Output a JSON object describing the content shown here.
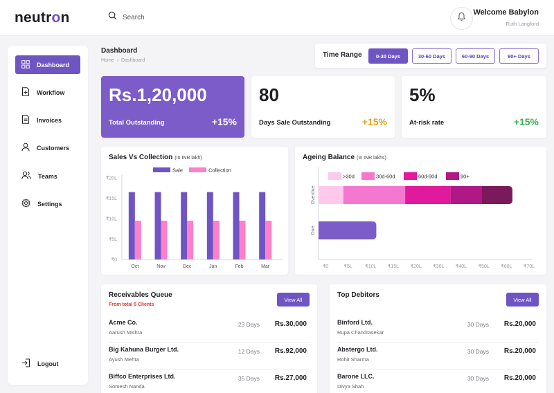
{
  "brand": {
    "prefix": "neutr",
    "o": "o",
    "suffix": "n"
  },
  "search": {
    "placeholder": "Search"
  },
  "user": {
    "welcome": "Welcome Babylon",
    "name": "Ruth Langford"
  },
  "sidebar": {
    "items": [
      {
        "label": "Dashboard",
        "icon": "grid-icon"
      },
      {
        "label": "Workflow",
        "icon": "workflow-icon"
      },
      {
        "label": "Invoices",
        "icon": "invoice-icon"
      },
      {
        "label": "Customers",
        "icon": "user-icon"
      },
      {
        "label": "Teams",
        "icon": "team-icon"
      },
      {
        "label": "Settings",
        "icon": "gear-icon"
      }
    ],
    "logout": "Logout"
  },
  "page": {
    "title": "Dashboard",
    "crumb_home": "Home",
    "crumb_sep": "›",
    "crumb_current": "Dashboard"
  },
  "time_range": {
    "label": "Time Range",
    "options": [
      "0-30 Days",
      "30-60 Days",
      "60-90 Days",
      "90+ Days"
    ],
    "selected": "0-30 Days"
  },
  "kpis": [
    {
      "value": "Rs.1,20,000",
      "label": "Total Outstanding",
      "change": "+15%",
      "change_color": "#ffffff"
    },
    {
      "value": "80",
      "label": "Days Sale Outstanding",
      "change": "+15%",
      "change_color": "#e2a126"
    },
    {
      "value": "5%",
      "label": "At-risk rate",
      "change": "+15%",
      "change_color": "#3dae55"
    }
  ],
  "sales_chart": {
    "title": "Sales Vs Collection",
    "subtitle": "(In INR lakh)"
  },
  "ageing_chart": {
    "title": "Ageing Balance",
    "subtitle": "(In INR lakhs)"
  },
  "chart_data": [
    {
      "type": "bar",
      "title": "Sales Vs Collection",
      "categories": [
        "Oct",
        "Nov",
        "Dec",
        "Jan",
        "Feb",
        "Mar"
      ],
      "series": [
        {
          "name": "Sale",
          "values": [
            16.5,
            16.5,
            16.5,
            16.5,
            16.5,
            16.5
          ],
          "color": "#6f55c4"
        },
        {
          "name": "Collection",
          "values": [
            9.5,
            9.5,
            9.5,
            9.5,
            9.5,
            9.5
          ],
          "color": "#ff80c8"
        }
      ],
      "yticks": [
        "₹0",
        "₹5L",
        "₹10L",
        "₹15L",
        "₹20L"
      ],
      "ylim": [
        0,
        20
      ],
      "legend": "top",
      "grid": false
    },
    {
      "type": "bar",
      "orientation": "horizontal",
      "stacked": true,
      "title": "Ageing Balance",
      "categories": [
        "Overdue",
        "Due"
      ],
      "series": [
        {
          "name": ">30d",
          "values": [
            6,
            0
          ],
          "color": "#ffc9ec"
        },
        {
          "name": "30d-60d",
          "values": [
            15,
            0
          ],
          "color": "#f478cf"
        },
        {
          "name": "60d-90d",
          "values": [
            11,
            0
          ],
          "color": "#e0199d"
        },
        {
          "name": "90+",
          "values": [
            7.5,
            0
          ],
          "color": "#b01886"
        },
        {
          "name": "",
          "values": [
            7.5,
            0
          ],
          "color": "#7a1a5c"
        },
        {
          "name": "",
          "values": [
            0,
            14
          ],
          "color": "#7b5cc8"
        }
      ],
      "xticks": [
        "₹0",
        "₹5L",
        "₹10L",
        "₹15L",
        "₹20L",
        "₹30L",
        "₹40L",
        "₹50L",
        "₹60L",
        "₹70L"
      ],
      "legend": "top",
      "grid": false
    }
  ],
  "receivables": {
    "title": "Receivables Queue",
    "subtitle": "From total 5 Clients",
    "view_all": "View All",
    "rows": [
      {
        "name": "Acme Co.",
        "person": "Aarush Mishra",
        "days": "23 Days",
        "amount": "Rs.30,000"
      },
      {
        "name": "Big Kahuna Burger Ltd.",
        "person": "Ayush Mehta",
        "days": "12 Days",
        "amount": "Rs.92,000"
      },
      {
        "name": "Biffco Enterprises Ltd.",
        "person": "Somesh Nanda",
        "days": "35 Days",
        "amount": "Rs.27,000"
      }
    ]
  },
  "debitors": {
    "title": "Top Debitors",
    "view_all": "View All",
    "rows": [
      {
        "name": "Binford Ltd.",
        "person": "Rupa Chandrasekar",
        "days": "30 Days",
        "amount": "Rs.20,000"
      },
      {
        "name": "Abstergo Ltd.",
        "person": "Rohit Sharma",
        "days": "30 Days",
        "amount": "Rs.20,000"
      },
      {
        "name": "Barone LLC.",
        "person": "Divya Shah",
        "days": "30 Days",
        "amount": "Rs.20,000"
      }
    ]
  }
}
